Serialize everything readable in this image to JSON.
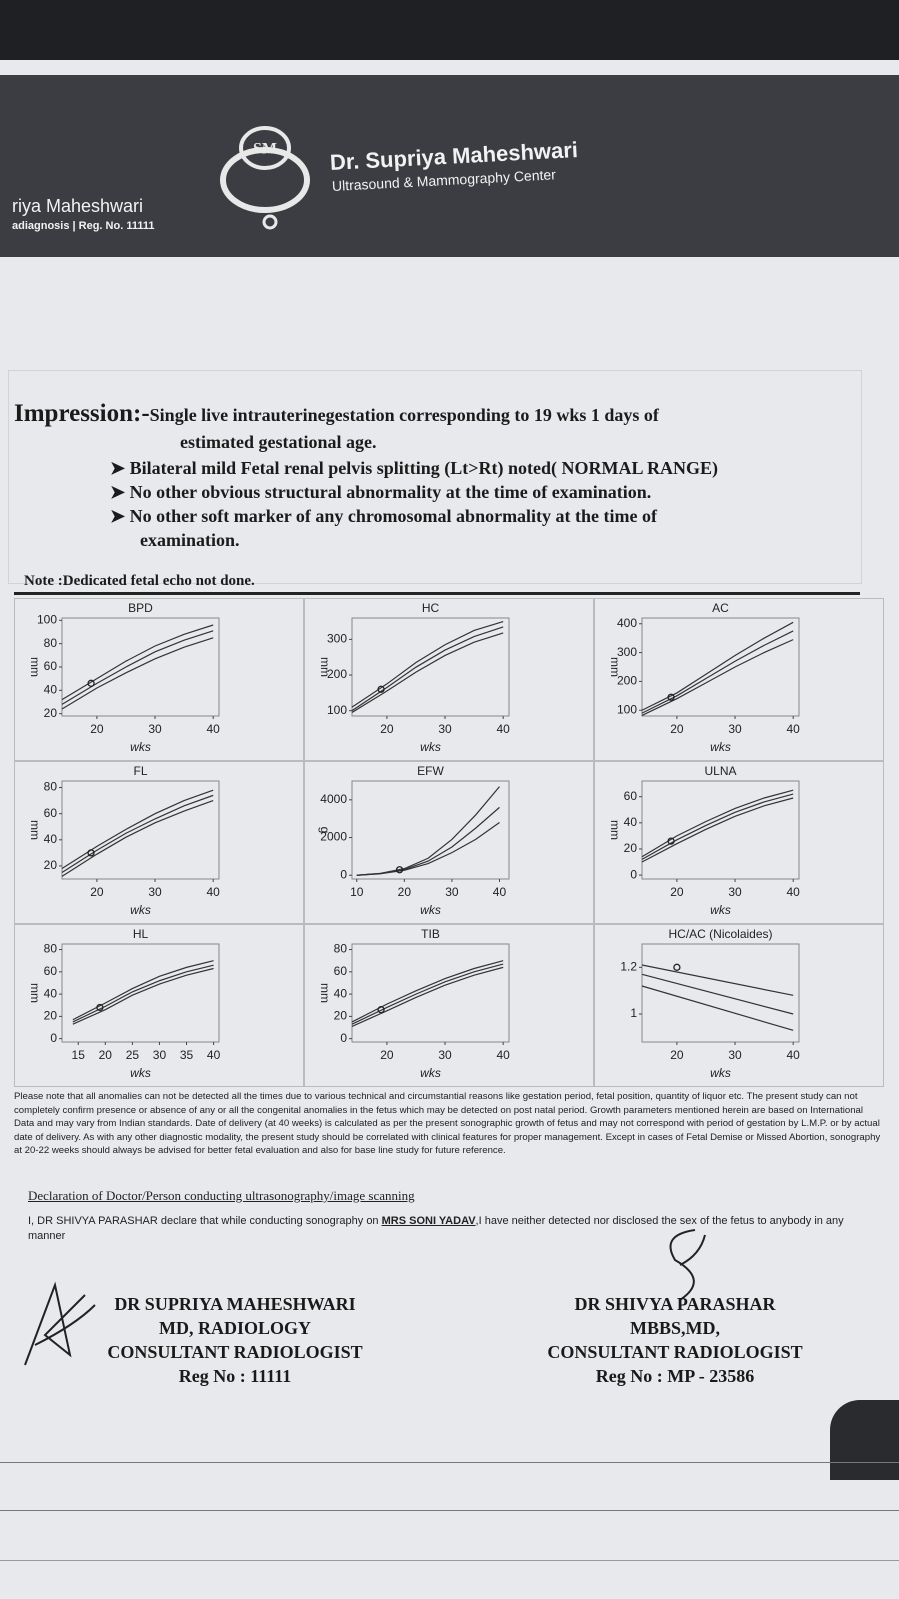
{
  "header": {
    "logo": "SM",
    "left_name": "riya Maheshwari",
    "left_sub": "adiagnosis | Reg. No. 11111",
    "center_name": "Dr. Supriya Maheshwari",
    "center_sub": "Ultrasound & Mammography Center"
  },
  "impression": {
    "label": "Impression:-",
    "line1": "Single live intrauterinegestation corresponding to 19 wks 1 days of",
    "line2": "estimated gestational age.",
    "bullets": [
      "Bilateral mild Fetal renal pelvis splitting (Lt>Rt) noted( NORMAL RANGE)",
      "No other obvious structural abnormality at the time of examination.",
      "No other  soft marker of any chromosomal abnormality at the time of",
      "examination."
    ]
  },
  "note": "Note :Dedicated fetal echo  not done.",
  "charts": [
    {
      "type": "line",
      "title": "BPD",
      "ylabel": "mm",
      "xlabel": "wks",
      "xlim": [
        14,
        41
      ],
      "ylim": [
        18,
        102
      ],
      "xticks": [
        20,
        30,
        40
      ],
      "yticks": [
        20,
        40,
        60,
        80,
        100
      ],
      "x": [
        14,
        20,
        25,
        30,
        35,
        40
      ],
      "series": [
        {
          "values": [
            32,
            50,
            65,
            78,
            88,
            96
          ]
        },
        {
          "values": [
            28,
            46,
            60,
            73,
            83,
            91
          ]
        },
        {
          "values": [
            24,
            42,
            55,
            67,
            77,
            85
          ]
        }
      ],
      "point": {
        "x": 19,
        "y": 46
      }
    },
    {
      "type": "line",
      "title": "HC",
      "ylabel": "mm",
      "xlabel": "wks",
      "xlim": [
        14,
        41
      ],
      "ylim": [
        85,
        360
      ],
      "xticks": [
        20,
        30,
        40
      ],
      "yticks": [
        100,
        200,
        300
      ],
      "x": [
        14,
        20,
        25,
        30,
        35,
        40
      ],
      "series": [
        {
          "values": [
            110,
            175,
            235,
            285,
            325,
            350
          ]
        },
        {
          "values": [
            100,
            165,
            222,
            270,
            308,
            335
          ]
        },
        {
          "values": [
            95,
            155,
            208,
            255,
            292,
            318
          ]
        }
      ],
      "point": {
        "x": 19,
        "y": 160
      }
    },
    {
      "type": "line",
      "title": "AC",
      "ylabel": "mm",
      "xlabel": "wks",
      "xlim": [
        14,
        41
      ],
      "ylim": [
        80,
        420
      ],
      "xticks": [
        20,
        30,
        40
      ],
      "yticks": [
        100,
        200,
        300,
        400
      ],
      "x": [
        14,
        20,
        25,
        30,
        35,
        40
      ],
      "series": [
        {
          "values": [
            100,
            160,
            225,
            290,
            350,
            405
          ]
        },
        {
          "values": [
            90,
            150,
            210,
            270,
            325,
            375
          ]
        },
        {
          "values": [
            82,
            140,
            195,
            250,
            300,
            345
          ]
        }
      ],
      "point": {
        "x": 19,
        "y": 145
      }
    },
    {
      "type": "line",
      "title": "FL",
      "ylabel": "mm",
      "xlabel": "wks",
      "xlim": [
        14,
        41
      ],
      "ylim": [
        10,
        85
      ],
      "xticks": [
        20,
        30,
        40
      ],
      "yticks": [
        20,
        40,
        60,
        80
      ],
      "x": [
        14,
        20,
        25,
        30,
        35,
        40
      ],
      "series": [
        {
          "values": [
            18,
            35,
            48,
            60,
            70,
            78
          ]
        },
        {
          "values": [
            15,
            32,
            45,
            56,
            66,
            74
          ]
        },
        {
          "values": [
            12,
            29,
            42,
            53,
            62,
            70
          ]
        }
      ],
      "point": {
        "x": 19,
        "y": 30
      }
    },
    {
      "type": "line",
      "title": "EFW",
      "ylabel": "g",
      "xlabel": "wks",
      "xlim": [
        9,
        42
      ],
      "ylim": [
        -200,
        5000
      ],
      "xticks": [
        10,
        20,
        30,
        40
      ],
      "yticks": [
        0,
        2000,
        4000
      ],
      "x": [
        10,
        15,
        20,
        25,
        30,
        35,
        40
      ],
      "series": [
        {
          "values": [
            0,
            100,
            350,
            900,
            1900,
            3200,
            4700
          ]
        },
        {
          "values": [
            0,
            90,
            300,
            750,
            1500,
            2500,
            3600
          ]
        },
        {
          "values": [
            0,
            80,
            260,
            620,
            1200,
            1900,
            2800
          ]
        }
      ],
      "point": {
        "x": 19,
        "y": 290
      }
    },
    {
      "type": "line",
      "title": "ULNA",
      "ylabel": "mm",
      "xlabel": "wks",
      "xlim": [
        14,
        41
      ],
      "ylim": [
        -3,
        72
      ],
      "xticks": [
        20,
        30,
        40
      ],
      "yticks": [
        0,
        20,
        40,
        60
      ],
      "x": [
        14,
        20,
        25,
        30,
        35,
        40
      ],
      "series": [
        {
          "values": [
            14,
            30,
            41,
            51,
            59,
            65
          ]
        },
        {
          "values": [
            12,
            27,
            38,
            48,
            56,
            62
          ]
        },
        {
          "values": [
            10,
            24,
            35,
            45,
            53,
            59
          ]
        }
      ],
      "point": {
        "x": 19,
        "y": 26
      }
    },
    {
      "type": "line",
      "title": "HL",
      "ylabel": "mm",
      "xlabel": "wks",
      "xlim": [
        12,
        41
      ],
      "ylim": [
        -3,
        85
      ],
      "xticks": [
        15,
        20,
        25,
        30,
        35,
        40
      ],
      "yticks": [
        0,
        20,
        40,
        60,
        80
      ],
      "x": [
        14,
        20,
        25,
        30,
        35,
        40
      ],
      "series": [
        {
          "values": [
            17,
            32,
            45,
            56,
            64,
            70
          ]
        },
        {
          "values": [
            15,
            29,
            42,
            52,
            60,
            66
          ]
        },
        {
          "values": [
            13,
            26,
            39,
            49,
            57,
            63
          ]
        }
      ],
      "point": {
        "x": 19,
        "y": 28
      }
    },
    {
      "type": "line",
      "title": "TIB",
      "ylabel": "mm",
      "xlabel": "wks",
      "xlim": [
        14,
        41
      ],
      "ylim": [
        -3,
        85
      ],
      "xticks": [
        20,
        30,
        40
      ],
      "yticks": [
        0,
        20,
        40,
        60,
        80
      ],
      "x": [
        14,
        20,
        25,
        30,
        35,
        40
      ],
      "series": [
        {
          "values": [
            15,
            31,
            43,
            54,
            63,
            70
          ]
        },
        {
          "values": [
            13,
            28,
            40,
            51,
            60,
            67
          ]
        },
        {
          "values": [
            11,
            25,
            37,
            48,
            57,
            64
          ]
        }
      ],
      "point": {
        "x": 19,
        "y": 26
      }
    },
    {
      "type": "line",
      "title": "HC/AC (Nicolaides)",
      "xlabel": "wks",
      "xlim": [
        14,
        41
      ],
      "ylim": [
        0.88,
        1.3
      ],
      "xticks": [
        20,
        30,
        40
      ],
      "yticks": [
        1,
        1.2
      ],
      "x": [
        14,
        40
      ],
      "series": [
        {
          "values": [
            1.21,
            1.08
          ]
        },
        {
          "values": [
            1.17,
            1.0
          ]
        },
        {
          "values": [
            1.12,
            0.93
          ]
        }
      ],
      "point": {
        "x": 20,
        "y": 1.2
      }
    }
  ],
  "disclaimer": "Please note that all anomalies can not be detected all the times due to various technical and circumstantial reasons like gestation period, fetal position, quantity of liquor etc. The present study can not completely confirm presence or absence of any or all the congenital anomalies in the fetus which may be detected on post natal period. Growth parameters mentioned herein are based on International Data and may vary from Indian standards. Date of delivery (at 40 weeks) is calculated as per the present sonographic growth of fetus and may not correspond with period of gestation by L.M.P. or by actual date of delivery. As with any other diagnostic modality, the present study should be correlated with clinical features for proper management. Except in cases of Fetal Demise or Missed Abortion, sonography at 20-22 weeks should always be advised for better fetal evaluation and also for base line study for future reference.",
  "declaration": {
    "heading": "Declaration of Doctor/Person conducting ultrasonography/image scanning",
    "before": "I, DR SHIVYA PARASHAR declare that while conducting sonography on ",
    "patient": "MRS SONI YADAV",
    "after": ",I have neither detected nor disclosed the sex of the fetus to anybody in any manner"
  },
  "signatures": [
    {
      "name": "DR SUPRIYA MAHESHWARI",
      "degree": "MD, RADIOLOGY",
      "title": "CONSULTANT RADIOLOGIST",
      "reg": "Reg No : 11111"
    },
    {
      "name": "DR SHIVYA PARASHAR",
      "degree": "MBBS,MD,",
      "title": "CONSULTANT RADIOLOGIST",
      "reg": "Reg No : MP - 23586"
    }
  ]
}
